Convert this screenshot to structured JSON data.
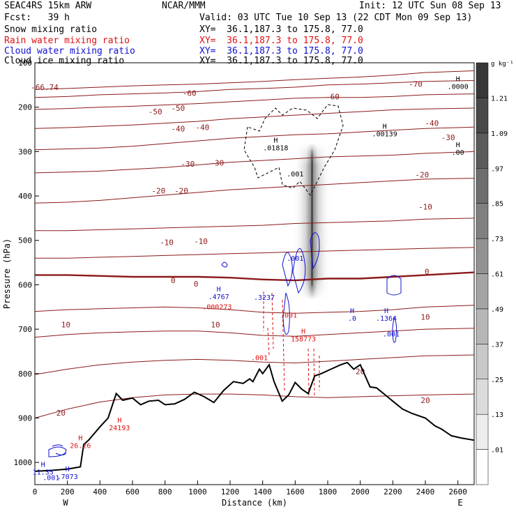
{
  "header": {
    "model": "SEAC4RS 15km ARW",
    "org": "NCAR/MMM",
    "init": "Init: 12 UTC Sun 08 Sep 13",
    "fcst": "Fcst:   39 h",
    "valid": "Valid: 03 UTC Tue 10 Sep 13 (22 CDT Mon 09 Sep 13)",
    "fields": [
      {
        "label": "Snow mixing ratio",
        "xy": "XY=  36.1,187.3 to 175.8, 77.0",
        "color": "#000000"
      },
      {
        "label": "Rain water mixing ratio",
        "xy": "XY=  36.1,187.3 to 175.8, 77.0",
        "color": "#e01010"
      },
      {
        "label": "Cloud water mixing ratio",
        "xy": "XY=  36.1,187.3 to 175.8, 77.0",
        "color": "#1010d0"
      },
      {
        "label": "Cloud ice mixing ratio",
        "xy": "XY=  36.1,187.3 to 175.8, 77.0",
        "color": "#000000"
      }
    ]
  },
  "colors": {
    "temperature": "#8b1a1a",
    "rain": "#e01010",
    "cloud_water": "#1010d0",
    "terrain": "#000000"
  },
  "chart_data": {
    "type": "cross-section",
    "xlabel": "Distance (km)",
    "ylabel": "Pressure (hPa)",
    "xlim": [
      0,
      2700
    ],
    "ylim": [
      1050,
      100
    ],
    "x_ticks": [
      0,
      200,
      400,
      600,
      800,
      1000,
      1200,
      1400,
      1600,
      1800,
      2000,
      2200,
      2400,
      2600
    ],
    "y_ticks": [
      100,
      200,
      300,
      400,
      500,
      600,
      700,
      800,
      900,
      1000
    ],
    "y_tick_labels": [
      "100",
      "200",
      "300",
      "400",
      "500",
      "600",
      "700",
      "800",
      "900",
      "1000"
    ],
    "x_end_labels": {
      "left": "W",
      "right": "E"
    },
    "colorbar": {
      "unit": "g kg⁻¹",
      "labels": [
        ".01",
        ".13",
        ".25",
        ".37",
        ".49",
        ".61",
        ".73",
        ".85",
        ".97",
        "1.09",
        "1.21"
      ]
    },
    "temperature_contours": [
      {
        "t": -70,
        "p": [
          160,
          158,
          155,
          152,
          150,
          148,
          145,
          142,
          138,
          135,
          132,
          128,
          122,
          118
        ]
      },
      {
        "t": -60,
        "p": [
          178,
          176,
          172,
          170,
          168,
          165,
          160,
          158,
          155,
          150,
          148,
          145,
          142,
          140
        ]
      },
      {
        "t": -50,
        "p": [
          205,
          203,
          200,
          198,
          195,
          192,
          188,
          184,
          180,
          178,
          178,
          176,
          172,
          170
        ]
      },
      {
        "t": -40,
        "p": [
          248,
          246,
          243,
          240,
          236,
          232,
          226,
          222,
          218,
          214,
          210,
          206,
          204,
          202
        ]
      },
      {
        "t": -30,
        "p": [
          296,
          294,
          292,
          288,
          282,
          276,
          270,
          266,
          262,
          260,
          256,
          252,
          248,
          245
        ]
      },
      {
        "t": -20,
        "p": [
          348,
          346,
          344,
          340,
          336,
          330,
          324,
          320,
          316,
          312,
          310,
          308,
          304,
          300
        ]
      },
      {
        "t": -10,
        "p": [
          416,
          414,
          410,
          404,
          398,
          392,
          386,
          382,
          378,
          374,
          370,
          366,
          362,
          360
        ]
      },
      {
        "t": -10,
        "p": [
          478,
          478,
          476,
          474,
          472,
          470,
          468,
          466,
          462,
          460,
          458,
          456,
          452,
          450
        ]
      },
      {
        "t": -10,
        "p": [
          540,
          540,
          538,
          536,
          534,
          532,
          530,
          528,
          526,
          524,
          522,
          520,
          518,
          516
        ]
      },
      {
        "t": 0,
        "p": [
          578,
          578,
          580,
          582,
          582,
          582,
          584,
          588,
          590,
          586,
          586,
          582,
          578,
          572
        ]
      },
      {
        "t": 10,
        "p": [
          660,
          656,
          654,
          652,
          650,
          652,
          656,
          662,
          664,
          662,
          660,
          656,
          650,
          646
        ]
      },
      {
        "t": 10,
        "p": [
          718,
          712,
          708,
          706,
          704,
          704,
          708,
          714,
          716,
          712,
          708,
          704,
          700,
          698
        ]
      },
      {
        "t": 20,
        "p": [
          802,
          790,
          780,
          774,
          770,
          768,
          770,
          774,
          776,
          772,
          768,
          764,
          760,
          758
        ]
      },
      {
        "t": 20,
        "p": [
          900,
          880,
          864,
          854,
          848,
          846,
          846,
          848,
          852,
          854,
          852,
          850,
          848,
          846
        ]
      }
    ],
    "temperature_labels": [
      {
        "text": "-70",
        "x": 2340,
        "p": 148
      },
      {
        "text": "-66.74",
        "x": 60,
        "p": 155
      },
      {
        "text": "-60",
        "x": 950,
        "p": 168
      },
      {
        "text": "-60",
        "x": 1830,
        "p": 176
      },
      {
        "text": "-50",
        "x": 740,
        "p": 210
      },
      {
        "text": "-50",
        "x": 880,
        "p": 202
      },
      {
        "text": "-40",
        "x": 880,
        "p": 248
      },
      {
        "text": "-40",
        "x": 1030,
        "p": 245
      },
      {
        "text": "-40",
        "x": 2440,
        "p": 236
      },
      {
        "text": "-30",
        "x": 940,
        "p": 328
      },
      {
        "text": "-30",
        "x": 1120,
        "p": 325
      },
      {
        "text": "-30",
        "x": 2540,
        "p": 268
      },
      {
        "text": "-20",
        "x": 760,
        "p": 388
      },
      {
        "text": "-20",
        "x": 900,
        "p": 388
      },
      {
        "text": "-20",
        "x": 2380,
        "p": 352
      },
      {
        "text": "-10",
        "x": 810,
        "p": 504
      },
      {
        "text": "-10",
        "x": 1020,
        "p": 502
      },
      {
        "text": "-10",
        "x": 2400,
        "p": 424
      },
      {
        "text": "0",
        "x": 850,
        "p": 590
      },
      {
        "text": "0",
        "x": 990,
        "p": 598
      },
      {
        "text": "0",
        "x": 2410,
        "p": 570
      },
      {
        "text": "10",
        "x": 190,
        "p": 690
      },
      {
        "text": "10",
        "x": 1110,
        "p": 690
      },
      {
        "text": "10",
        "x": 2400,
        "p": 672
      },
      {
        "text": "20",
        "x": 160,
        "p": 888
      },
      {
        "text": "20",
        "x": 2000,
        "p": 795
      },
      {
        "text": "20",
        "x": 2400,
        "p": 860
      }
    ],
    "terrain": {
      "x": [
        0,
        100,
        200,
        280,
        300,
        330,
        400,
        450,
        500,
        540,
        600,
        650,
        700,
        760,
        800,
        860,
        920,
        980,
        1040,
        1100,
        1160,
        1220,
        1280,
        1320,
        1340,
        1380,
        1400,
        1440,
        1470,
        1520,
        1560,
        1600,
        1640,
        1680,
        1720,
        1760,
        1820,
        1880,
        1920,
        1960,
        2000,
        2060,
        2100,
        2160,
        2200,
        2260,
        2320,
        2400,
        2460,
        2500,
        2560,
        2620,
        2700
      ],
      "p": [
        1020,
        1018,
        1015,
        1010,
        960,
        950,
        920,
        900,
        845,
        860,
        855,
        870,
        862,
        860,
        870,
        868,
        858,
        842,
        852,
        865,
        838,
        818,
        822,
        812,
        818,
        790,
        800,
        780,
        818,
        862,
        848,
        820,
        835,
        845,
        805,
        800,
        790,
        780,
        775,
        790,
        780,
        830,
        832,
        850,
        862,
        880,
        890,
        900,
        918,
        925,
        940,
        945,
        950
      ]
    },
    "heights": [
      {
        "text": "H\n.0000",
        "x": 2600,
        "p": 142
      },
      {
        "text": "H\n.00139",
        "x": 2150,
        "p": 248
      },
      {
        "text": "H\n.00",
        "x": 2600,
        "p": 290
      },
      {
        "text": "H\n.01818",
        "x": 1480,
        "p": 280
      },
      {
        "text": ".001",
        "x": 1600,
        "p": 356
      },
      {
        "text": "H\n.4767",
        "x": 1130,
        "p": 615
      },
      {
        "text": ".000273",
        "x": 1120,
        "p": 655
      },
      {
        "text": ".3237",
        "x": 1410,
        "p": 634
      },
      {
        "text": ".001",
        "x": 1600,
        "p": 546
      },
      {
        "text": ".001",
        "x": 1560,
        "p": 674
      },
      {
        "text": "H\n.0",
        "x": 1950,
        "p": 664
      },
      {
        "text": "H\n.1364",
        "x": 2160,
        "p": 664
      },
      {
        "text": ".001",
        "x": 2190,
        "p": 716
      },
      {
        "text": "H\n158773",
        "x": 1650,
        "p": 710
      },
      {
        "text": ".001",
        "x": 1380,
        "p": 770
      },
      {
        "text": "H\n24193",
        "x": 520,
        "p": 910
      },
      {
        "text": "H\n26.26",
        "x": 280,
        "p": 950
      },
      {
        "text": "H\n11.35",
        "x": 50,
        "p": 1010
      },
      {
        "text": "H\n.7073",
        "x": 200,
        "p": 1020
      },
      {
        "text": ".001",
        "x": 100,
        "p": 1040
      }
    ]
  }
}
